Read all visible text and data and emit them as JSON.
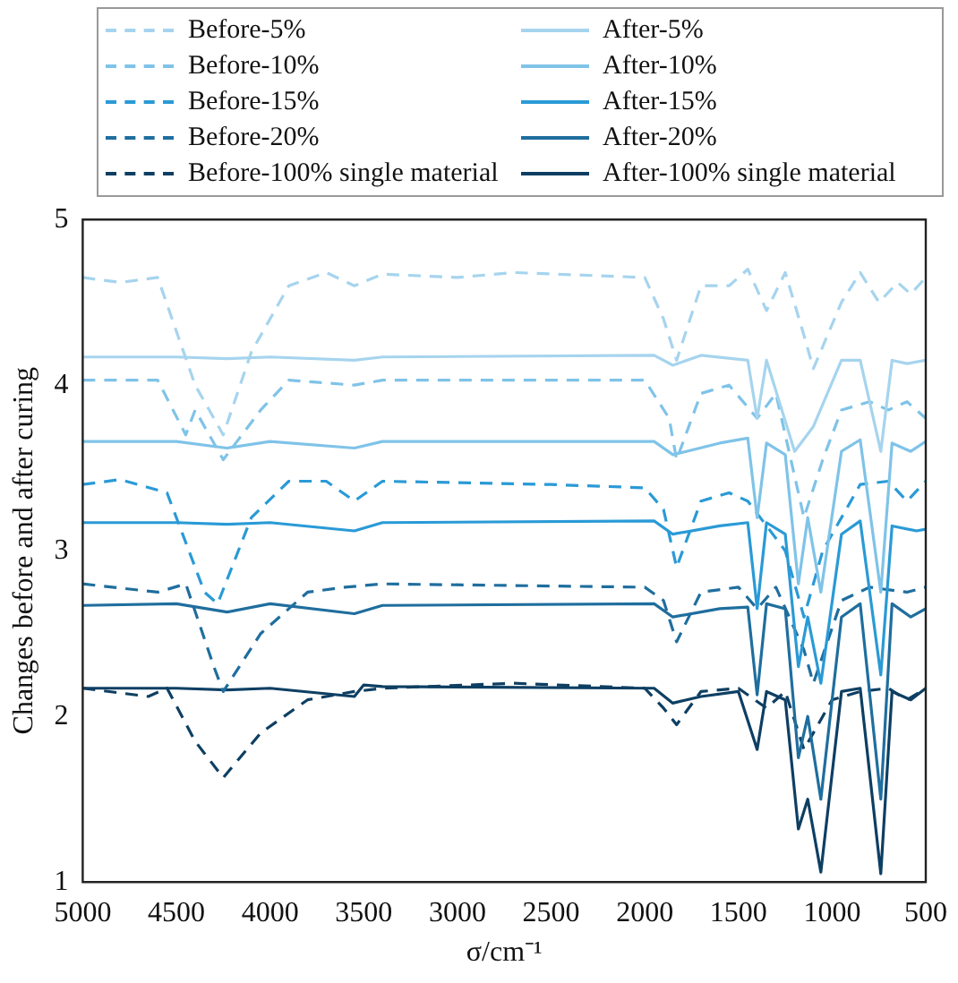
{
  "chart_data": {
    "type": "line",
    "xlabel": "σ/cm⁻¹",
    "ylabel": "Changes before and after curing",
    "xlim": [
      5000,
      500
    ],
    "ylim": [
      1,
      5
    ],
    "xticks": [
      5000,
      4500,
      4000,
      3500,
      3000,
      2500,
      2000,
      1500,
      1000,
      500
    ],
    "yticks": [
      1,
      2,
      3,
      4,
      5
    ],
    "grid": false,
    "legend": "top",
    "marker": "none",
    "series": [
      {
        "name": "Before-5%",
        "color": "#a6d4ee",
        "line_style": "dashed",
        "x": [
          5000,
          4800,
          4600,
          4400,
          4250,
          4100,
          3900,
          3700,
          3550,
          3400,
          3000,
          2700,
          2000,
          1900,
          1830,
          1700,
          1550,
          1450,
          1350,
          1250,
          1150,
          1100,
          950,
          850,
          750,
          650,
          580,
          500
        ],
        "values": [
          4.65,
          4.62,
          4.65,
          4.0,
          3.7,
          4.2,
          4.6,
          4.68,
          4.6,
          4.67,
          4.65,
          4.68,
          4.65,
          4.4,
          4.15,
          4.6,
          4.6,
          4.7,
          4.45,
          4.68,
          4.3,
          4.1,
          4.5,
          4.68,
          4.5,
          4.62,
          4.55,
          4.65
        ]
      },
      {
        "name": "After-5%",
        "color": "#a6d4ee",
        "line_style": "solid",
        "x": [
          5000,
          4500,
          4230,
          4000,
          3550,
          3400,
          1950,
          1850,
          1700,
          1450,
          1400,
          1350,
          1200,
          1100,
          950,
          850,
          740,
          680,
          600,
          500
        ],
        "values": [
          4.17,
          4.17,
          4.16,
          4.17,
          4.15,
          4.17,
          4.18,
          4.12,
          4.18,
          4.15,
          3.8,
          4.15,
          3.6,
          3.75,
          4.15,
          4.15,
          3.6,
          4.15,
          4.13,
          4.15
        ]
      },
      {
        "name": "Before-10%",
        "color": "#7fc3e8",
        "line_style": "dashed",
        "x": [
          5000,
          4600,
          4450,
          4400,
          4250,
          4050,
          3900,
          3550,
          3400,
          2000,
          1870,
          1830,
          1700,
          1550,
          1400,
          1300,
          1150,
          1050,
          950,
          800,
          700,
          600,
          500
        ],
        "values": [
          4.03,
          4.03,
          3.7,
          3.85,
          3.55,
          3.85,
          4.03,
          4.0,
          4.03,
          4.03,
          3.8,
          3.55,
          3.95,
          4.0,
          3.8,
          3.95,
          3.2,
          3.55,
          3.85,
          3.9,
          3.85,
          3.9,
          3.8
        ]
      },
      {
        "name": "After-10%",
        "color": "#7fc3e8",
        "line_style": "solid",
        "x": [
          5000,
          4500,
          4230,
          4000,
          3550,
          3400,
          1950,
          1850,
          1600,
          1450,
          1400,
          1350,
          1250,
          1180,
          1130,
          1060,
          950,
          850,
          740,
          680,
          580,
          500
        ],
        "values": [
          3.66,
          3.66,
          3.62,
          3.66,
          3.62,
          3.66,
          3.66,
          3.58,
          3.65,
          3.68,
          3.2,
          3.65,
          3.58,
          2.8,
          3.2,
          2.75,
          3.6,
          3.67,
          2.75,
          3.65,
          3.6,
          3.66
        ]
      },
      {
        "name": "Before-15%",
        "color": "#2a9ad6",
        "line_style": "dashed",
        "x": [
          5000,
          4800,
          4550,
          4350,
          4280,
          4100,
          3900,
          3700,
          3550,
          3400,
          2500,
          2000,
          1900,
          1830,
          1700,
          1550,
          1450,
          1250,
          1150,
          1050,
          850,
          700,
          600,
          500
        ],
        "values": [
          3.4,
          3.43,
          3.35,
          2.75,
          2.68,
          3.2,
          3.42,
          3.42,
          3.3,
          3.42,
          3.4,
          3.38,
          3.25,
          2.9,
          3.3,
          3.35,
          3.3,
          3.0,
          2.6,
          3.0,
          3.4,
          3.42,
          3.3,
          3.42
        ]
      },
      {
        "name": "After-15%",
        "color": "#2a9ad6",
        "line_style": "solid",
        "x": [
          5000,
          4500,
          4230,
          4000,
          3550,
          3400,
          1950,
          1850,
          1600,
          1450,
          1400,
          1350,
          1250,
          1180,
          1130,
          1060,
          950,
          850,
          740,
          680,
          550,
          500
        ],
        "values": [
          3.17,
          3.17,
          3.16,
          3.17,
          3.12,
          3.17,
          3.18,
          3.1,
          3.15,
          3.17,
          2.65,
          3.17,
          3.1,
          2.3,
          2.6,
          2.2,
          3.1,
          3.18,
          2.25,
          3.15,
          3.12,
          3.13
        ]
      },
      {
        "name": "Before-20%",
        "color": "#1f6e9e",
        "line_style": "dashed",
        "x": [
          5000,
          4600,
          4450,
          4300,
          4250,
          4050,
          3800,
          3600,
          3400,
          2000,
          1900,
          1830,
          1700,
          1500,
          1400,
          1300,
          1150,
          1100,
          950,
          800,
          600,
          500
        ],
        "values": [
          2.8,
          2.75,
          2.8,
          2.3,
          2.15,
          2.5,
          2.75,
          2.78,
          2.8,
          2.78,
          2.7,
          2.45,
          2.75,
          2.78,
          2.65,
          2.78,
          2.4,
          2.2,
          2.7,
          2.78,
          2.75,
          2.78
        ]
      },
      {
        "name": "After-20%",
        "color": "#1f6e9e",
        "line_style": "solid",
        "x": [
          5000,
          4500,
          4230,
          4000,
          3550,
          3400,
          1950,
          1850,
          1600,
          1450,
          1400,
          1350,
          1250,
          1180,
          1130,
          1060,
          950,
          850,
          740,
          680,
          580,
          500
        ],
        "values": [
          2.67,
          2.68,
          2.63,
          2.68,
          2.62,
          2.67,
          2.68,
          2.6,
          2.65,
          2.66,
          2.13,
          2.68,
          2.65,
          1.75,
          2.0,
          1.5,
          2.6,
          2.68,
          1.5,
          2.68,
          2.6,
          2.65
        ]
      },
      {
        "name": "Before-100% single material",
        "color": "#0e3f63",
        "line_style": "dashed",
        "x": [
          5000,
          4650,
          4550,
          4400,
          4250,
          4050,
          3800,
          3550,
          3400,
          2700,
          2000,
          1900,
          1830,
          1700,
          1500,
          1350,
          1250,
          1150,
          1000,
          850,
          700,
          600,
          500
        ],
        "values": [
          2.17,
          2.12,
          2.17,
          1.85,
          1.63,
          1.9,
          2.1,
          2.15,
          2.17,
          2.2,
          2.17,
          2.05,
          1.95,
          2.15,
          2.17,
          2.05,
          2.15,
          1.8,
          2.1,
          2.15,
          2.17,
          2.1,
          2.17
        ]
      },
      {
        "name": "After-100% single material",
        "color": "#0e3f63",
        "line_style": "solid",
        "x": [
          5000,
          4500,
          4230,
          4000,
          3550,
          3500,
          3400,
          1950,
          1850,
          1700,
          1500,
          1400,
          1350,
          1250,
          1180,
          1130,
          1060,
          950,
          850,
          740,
          680,
          580,
          500
        ],
        "values": [
          2.17,
          2.17,
          2.16,
          2.17,
          2.12,
          2.19,
          2.18,
          2.17,
          2.08,
          2.12,
          2.15,
          1.8,
          2.15,
          2.1,
          1.32,
          1.5,
          1.06,
          2.15,
          2.17,
          1.05,
          2.15,
          2.1,
          2.17
        ]
      }
    ]
  }
}
